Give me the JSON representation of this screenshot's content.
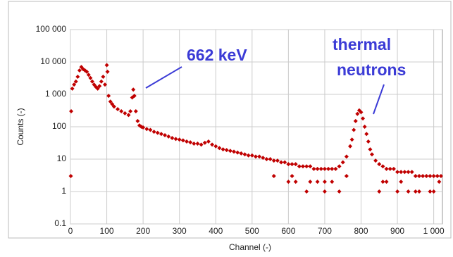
{
  "chart_data": {
    "type": "scatter",
    "x_label": "Channel (-)",
    "y_label": "Counts (-)",
    "annotations": [
      {
        "text": "662 keV"
      },
      {
        "lines": [
          "thermal",
          "neutrons"
        ]
      }
    ],
    "color": "#c00000",
    "log_y": true,
    "grid": true,
    "xlim": [
      0,
      1024
    ],
    "ylim": [
      0.1,
      100000
    ],
    "xticks": [
      0,
      100,
      200,
      300,
      400,
      500,
      600,
      700,
      800,
      900,
      {
        "value": 1000,
        "label": "1 000"
      }
    ],
    "yticks": [
      0.1,
      1,
      10,
      100,
      {
        "value": 1000,
        "label": "1 000"
      },
      {
        "value": 10000,
        "label": "10 000"
      },
      {
        "value": 100000,
        "label": "100 000"
      }
    ],
    "x": [
      1,
      2,
      5,
      10,
      15,
      20,
      25,
      30,
      35,
      40,
      45,
      50,
      55,
      60,
      65,
      70,
      75,
      80,
      85,
      90,
      95,
      100,
      102,
      105,
      110,
      115,
      120,
      130,
      140,
      150,
      160,
      165,
      170,
      173,
      176,
      180,
      185,
      190,
      195,
      200,
      210,
      220,
      230,
      240,
      250,
      260,
      270,
      280,
      290,
      300,
      310,
      320,
      330,
      340,
      350,
      360,
      370,
      380,
      390,
      400,
      410,
      420,
      430,
      440,
      450,
      460,
      470,
      480,
      490,
      500,
      510,
      520,
      530,
      540,
      550,
      560,
      570,
      580,
      590,
      600,
      610,
      620,
      630,
      640,
      650,
      660,
      670,
      680,
      690,
      700,
      710,
      720,
      730,
      740,
      750,
      760,
      770,
      775,
      780,
      785,
      790,
      795,
      800,
      805,
      810,
      815,
      820,
      825,
      830,
      840,
      850,
      860,
      870,
      880,
      890,
      900,
      910,
      920,
      930,
      940,
      950,
      960,
      970,
      980,
      990,
      1000,
      1010,
      1020,
      600,
      620,
      650,
      680,
      700,
      720,
      740,
      850,
      870,
      900,
      930,
      960,
      990,
      1015,
      560,
      610,
      660,
      700,
      760,
      860,
      910,
      950,
      1000
    ],
    "values": [
      3,
      300,
      1500,
      2000,
      2500,
      3500,
      5500,
      7000,
      6000,
      5500,
      5000,
      4000,
      3200,
      2500,
      2000,
      1700,
      1500,
      1800,
      2500,
      3500,
      2000,
      8000,
      5000,
      900,
      600,
      500,
      420,
      350,
      300,
      260,
      230,
      300,
      800,
      1400,
      900,
      300,
      150,
      110,
      100,
      95,
      85,
      80,
      70,
      65,
      60,
      55,
      50,
      45,
      42,
      40,
      38,
      35,
      33,
      30,
      30,
      28,
      32,
      35,
      28,
      25,
      22,
      20,
      19,
      18,
      17,
      16,
      15,
      14,
      13,
      13,
      12,
      12,
      11,
      10,
      10,
      9,
      9,
      8,
      8,
      7,
      7,
      7,
      6,
      6,
      6,
      6,
      5,
      5,
      5,
      5,
      5,
      5,
      5,
      6,
      8,
      12,
      25,
      40,
      80,
      150,
      250,
      320,
      280,
      180,
      100,
      60,
      35,
      20,
      14,
      9,
      7,
      6,
      5,
      5,
      5,
      4,
      4,
      4,
      4,
      4,
      3,
      3,
      3,
      3,
      3,
      3,
      3,
      3,
      2,
      2,
      1,
      2,
      1,
      2,
      1,
      1,
      2,
      1,
      1,
      1,
      1,
      2,
      3,
      3,
      2,
      2,
      3,
      2,
      2,
      1,
      1
    ]
  }
}
